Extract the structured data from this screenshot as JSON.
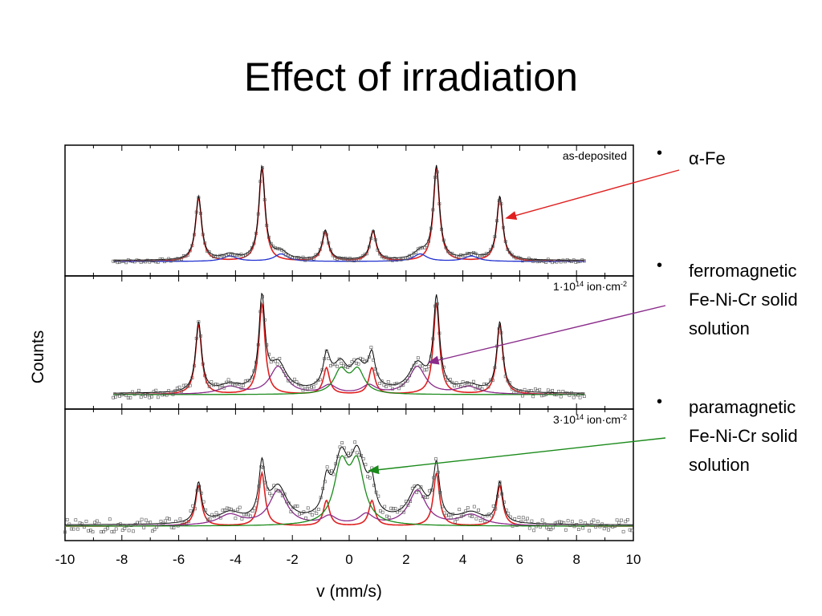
{
  "slide": {
    "title": "Effect of irradiation",
    "bullets": [
      {
        "lines": [
          "α-Fe"
        ],
        "color": "#e02020"
      },
      {
        "lines": [
          "ferromagnetic",
          "Fe-Ni-Cr solid",
          "solution"
        ],
        "color": "#8a2b8a"
      },
      {
        "lines": [
          "paramagnetic",
          "Fe-Ni-Cr solid",
          "solution"
        ],
        "color": "#1a8a1a"
      }
    ]
  },
  "chart_data": {
    "type": "line",
    "xlabel": "v (mm/s)",
    "ylabel": "Counts",
    "xlim": [
      -10,
      10
    ],
    "x_ticks": [
      -10,
      -8,
      -6,
      -4,
      -2,
      0,
      2,
      4,
      6,
      8,
      10
    ],
    "grid": false,
    "colors": {
      "data": "#000000",
      "alpha_fe": "#e02020",
      "minor": "#2030d0",
      "ferro": "#8a2b8a",
      "para": "#1a8a1a",
      "envelope": "#000000"
    },
    "panels": [
      {
        "label": "as-deposited",
        "x_range": [
          -8.3,
          8.3
        ],
        "baseline": 0.0,
        "y_max": 1.0,
        "series": [
          {
            "role": "alpha_fe",
            "peaks": [
              {
                "v": -5.3,
                "a": 0.6,
                "w": 0.13
              },
              {
                "v": -3.07,
                "a": 0.88,
                "w": 0.13
              },
              {
                "v": -0.84,
                "a": 0.28,
                "w": 0.13
              },
              {
                "v": 0.84,
                "a": 0.28,
                "w": 0.13
              },
              {
                "v": 3.07,
                "a": 0.88,
                "w": 0.13
              },
              {
                "v": 5.3,
                "a": 0.6,
                "w": 0.13
              }
            ]
          },
          {
            "role": "minor",
            "peaks": [
              {
                "v": -4.2,
                "a": 0.05,
                "w": 0.3
              },
              {
                "v": -2.4,
                "a": 0.07,
                "w": 0.28
              },
              {
                "v": 2.5,
                "a": 0.07,
                "w": 0.28
              },
              {
                "v": 4.3,
                "a": 0.05,
                "w": 0.3
              }
            ]
          }
        ]
      },
      {
        "label": "1·10",
        "label_sup": "14",
        "label_tail": " ion·cm",
        "label_tail_sup": "-2",
        "x_range": [
          -8.3,
          8.3
        ],
        "baseline": 0.0,
        "y_max": 1.0,
        "series": [
          {
            "role": "alpha_fe",
            "peaks": [
              {
                "v": -5.3,
                "a": 0.66,
                "w": 0.13
              },
              {
                "v": -3.07,
                "a": 0.86,
                "w": 0.13
              },
              {
                "v": -0.8,
                "a": 0.25,
                "w": 0.13
              },
              {
                "v": 0.8,
                "a": 0.25,
                "w": 0.13
              },
              {
                "v": 3.07,
                "a": 0.86,
                "w": 0.13
              },
              {
                "v": 5.3,
                "a": 0.66,
                "w": 0.13
              }
            ]
          },
          {
            "role": "ferro",
            "peaks": [
              {
                "v": -4.2,
                "a": 0.07,
                "w": 0.45
              },
              {
                "v": -2.5,
                "a": 0.26,
                "w": 0.35
              },
              {
                "v": -0.7,
                "a": 0.08,
                "w": 0.3
              },
              {
                "v": 0.7,
                "a": 0.08,
                "w": 0.3
              },
              {
                "v": 2.4,
                "a": 0.26,
                "w": 0.35
              },
              {
                "v": 4.2,
                "a": 0.07,
                "w": 0.45
              }
            ]
          },
          {
            "role": "para",
            "peaks": [
              {
                "v": -0.3,
                "a": 0.22,
                "w": 0.28
              },
              {
                "v": 0.3,
                "a": 0.22,
                "w": 0.28
              }
            ]
          }
        ]
      },
      {
        "label": "3·10",
        "label_sup": "14",
        "label_tail": " ion·cm",
        "label_tail_sup": "-2",
        "x_range": [
          -10,
          10
        ],
        "baseline": 0.0,
        "y_max": 1.0,
        "series": [
          {
            "role": "alpha_fe",
            "peaks": [
              {
                "v": -5.3,
                "a": 0.38,
                "w": 0.13
              },
              {
                "v": -3.07,
                "a": 0.5,
                "w": 0.13
              },
              {
                "v": -0.8,
                "a": 0.24,
                "w": 0.13
              },
              {
                "v": 0.8,
                "a": 0.24,
                "w": 0.13
              },
              {
                "v": 3.07,
                "a": 0.5,
                "w": 0.13
              },
              {
                "v": 5.3,
                "a": 0.38,
                "w": 0.13
              }
            ]
          },
          {
            "role": "ferro",
            "peaks": [
              {
                "v": -4.2,
                "a": 0.1,
                "w": 0.5
              },
              {
                "v": -2.5,
                "a": 0.33,
                "w": 0.38
              },
              {
                "v": -0.7,
                "a": 0.08,
                "w": 0.3
              },
              {
                "v": 0.6,
                "a": 0.1,
                "w": 0.3
              },
              {
                "v": 2.4,
                "a": 0.33,
                "w": 0.38
              },
              {
                "v": 4.3,
                "a": 0.1,
                "w": 0.5
              }
            ]
          },
          {
            "role": "para",
            "peaks": [
              {
                "v": -0.28,
                "a": 0.54,
                "w": 0.3
              },
              {
                "v": 0.28,
                "a": 0.54,
                "w": 0.3
              }
            ]
          }
        ]
      }
    ]
  }
}
